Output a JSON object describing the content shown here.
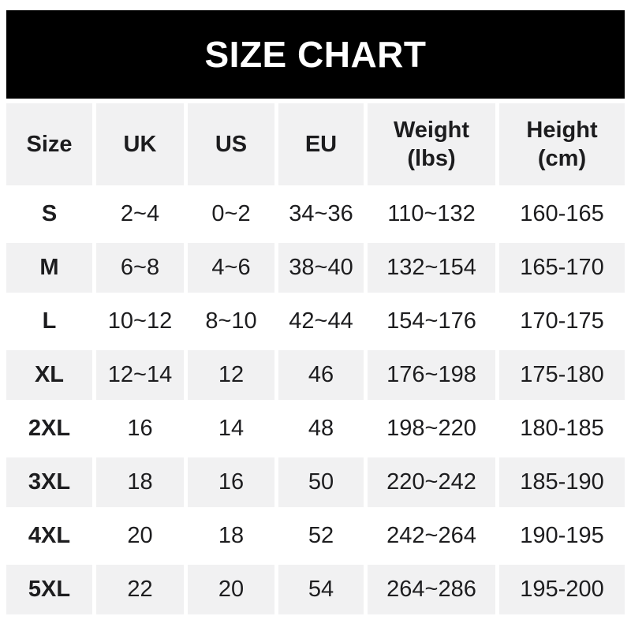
{
  "banner": {
    "title": "SIZE CHART"
  },
  "colors": {
    "banner_bg": "#000000",
    "banner_text": "#ffffff",
    "cell_gray": "#f1f1f2",
    "cell_white": "#ffffff",
    "text": "#1d1d1f"
  },
  "chart_data": {
    "type": "table",
    "title": "SIZE CHART",
    "columns": [
      {
        "label": "Size",
        "unit": ""
      },
      {
        "label": "UK",
        "unit": ""
      },
      {
        "label": "US",
        "unit": ""
      },
      {
        "label": "EU",
        "unit": ""
      },
      {
        "label": "Weight",
        "unit": "(lbs)"
      },
      {
        "label": "Height",
        "unit": "(cm)"
      }
    ],
    "rows": [
      {
        "size": "S",
        "uk": "2~4",
        "us": "0~2",
        "eu": "34~36",
        "weight_lbs": "110~132",
        "height_cm": "160-165"
      },
      {
        "size": "M",
        "uk": "6~8",
        "us": "4~6",
        "eu": "38~40",
        "weight_lbs": "132~154",
        "height_cm": "165-170"
      },
      {
        "size": "L",
        "uk": "10~12",
        "us": "8~10",
        "eu": "42~44",
        "weight_lbs": "154~176",
        "height_cm": "170-175"
      },
      {
        "size": "XL",
        "uk": "12~14",
        "us": "12",
        "eu": "46",
        "weight_lbs": "176~198",
        "height_cm": "175-180"
      },
      {
        "size": "2XL",
        "uk": "16",
        "us": "14",
        "eu": "48",
        "weight_lbs": "198~220",
        "height_cm": "180-185"
      },
      {
        "size": "3XL",
        "uk": "18",
        "us": "16",
        "eu": "50",
        "weight_lbs": "220~242",
        "height_cm": "185-190"
      },
      {
        "size": "4XL",
        "uk": "20",
        "us": "18",
        "eu": "52",
        "weight_lbs": "242~264",
        "height_cm": "190-195"
      },
      {
        "size": "5XL",
        "uk": "22",
        "us": "20",
        "eu": "54",
        "weight_lbs": "264~286",
        "height_cm": "195-200"
      }
    ]
  }
}
